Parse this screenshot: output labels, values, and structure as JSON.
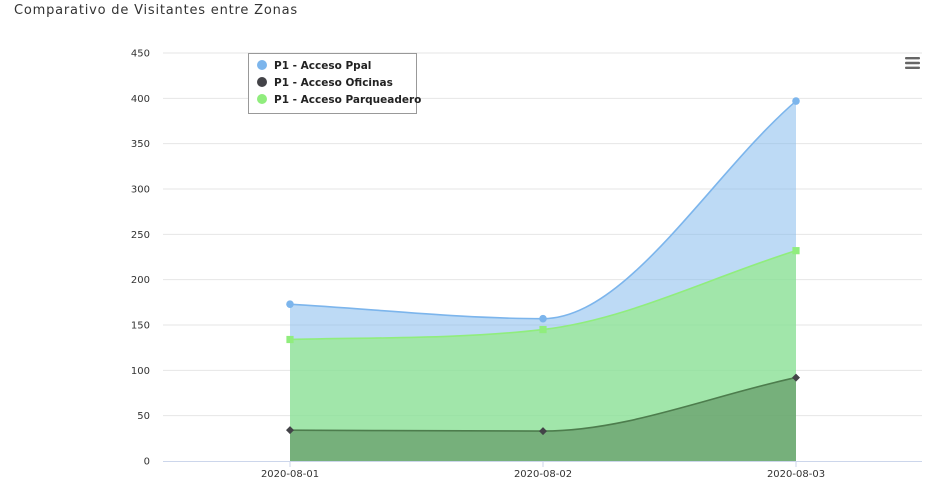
{
  "page": {
    "title": "Comparativo de Visitantes entre Zonas"
  },
  "menu": {
    "icon": "hamburger-menu-icon"
  },
  "chart_data": {
    "type": "area",
    "title": "Comparativo de Visitantes entre Zonas",
    "xlabel": "",
    "ylabel": "",
    "categories": [
      "2020-08-01",
      "2020-08-02",
      "2020-08-03"
    ],
    "ylim": [
      0,
      450
    ],
    "yticks": [
      0,
      50,
      100,
      150,
      200,
      250,
      300,
      350,
      400,
      450
    ],
    "grid": true,
    "legend_position": "top-left",
    "series": [
      {
        "name": "P1 - Acceso Ppal",
        "values": [
          173,
          157,
          397
        ],
        "color": "#7cb5ec",
        "marker": "circle"
      },
      {
        "name": "P1 - Acceso Parqueadero",
        "values": [
          134,
          145,
          232
        ],
        "color": "#90ed7d",
        "marker": "square"
      },
      {
        "name": "P1 - Acceso Oficinas",
        "values": [
          34,
          33,
          92
        ],
        "color": "#434348",
        "marker": "diamond"
      }
    ]
  },
  "legend": {
    "items": [
      {
        "name": "P1 - Acceso Ppal",
        "color": "#7cb5ec"
      },
      {
        "name": "P1 - Acceso Oficinas",
        "color": "#434348"
      },
      {
        "name": "P1 - Acceso Parqueadero",
        "color": "#90ed7d"
      }
    ]
  }
}
